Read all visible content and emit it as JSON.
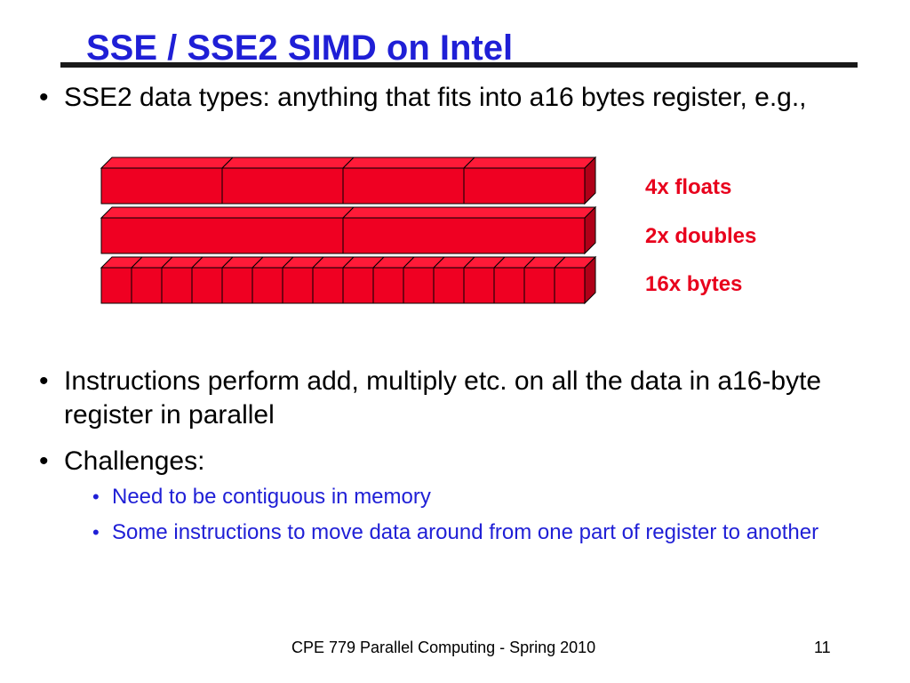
{
  "slide": {
    "title": "SSE / SSE2 SIMD on Intel",
    "bullets": [
      {
        "text": "SSE2 data types: anything that fits into a16 bytes register, e.g.,"
      },
      {
        "text": "Instructions perform add, multiply etc. on all the data in a16-byte register in parallel"
      },
      {
        "text": "Challenges:"
      }
    ],
    "sub_bullets": [
      {
        "text": "Need to be contiguous in memory"
      },
      {
        "text": "Some instructions to move data around from one part of register to another"
      }
    ],
    "bullet_char": "•"
  },
  "diagram": {
    "registers": [
      {
        "label": "4x floats",
        "lanes": 4
      },
      {
        "label": "2x doubles",
        "lanes": 2
      },
      {
        "label": "16x bytes",
        "lanes": 16
      }
    ],
    "colors": {
      "front": "#ef0022",
      "top": "#ff1a38",
      "side": "#b00018",
      "edge": "#000000",
      "label": "#e8001c"
    }
  },
  "footer": {
    "course": "CPE 779 Parallel Computing - Spring 2010",
    "page_number": "11"
  }
}
